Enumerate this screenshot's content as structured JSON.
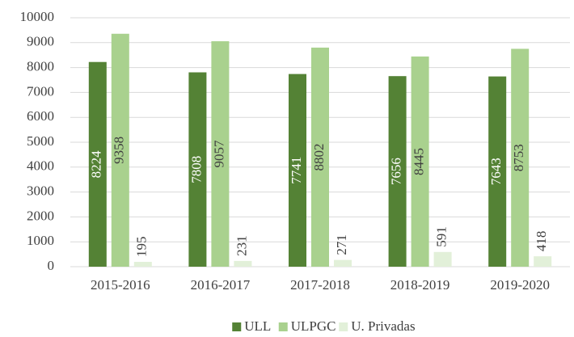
{
  "chart_data": {
    "type": "bar",
    "categories": [
      "2015-2016",
      "2016-2017",
      "2017-2018",
      "2018-2019",
      "2019-2020"
    ],
    "series": [
      {
        "name": "ULL",
        "color": "#548235",
        "values": [
          8224,
          7808,
          7741,
          7656,
          7643
        ]
      },
      {
        "name": "ULPGC",
        "color": "#a9d18e",
        "values": [
          9358,
          9057,
          8802,
          8445,
          8753
        ]
      },
      {
        "name": "U. Privadas",
        "color": "#e2f0d9",
        "values": [
          195,
          231,
          271,
          591,
          418
        ]
      }
    ],
    "ylim": [
      0,
      10000
    ],
    "yticks": [
      0,
      1000,
      2000,
      3000,
      4000,
      5000,
      6000,
      7000,
      8000,
      9000,
      10000
    ],
    "grid": true,
    "legend": "bottom"
  }
}
